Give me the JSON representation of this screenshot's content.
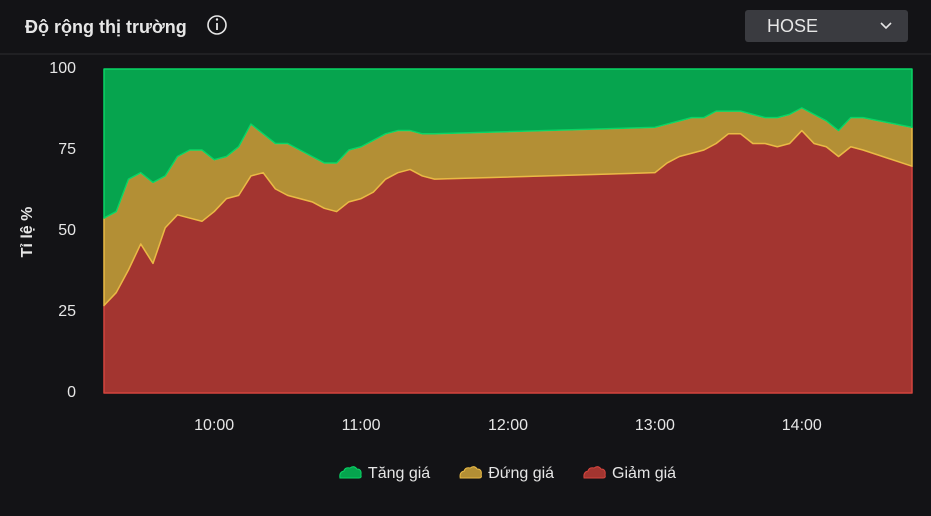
{
  "header": {
    "dropdown": "HOSE"
  },
  "chart_data": {
    "type": "stacked-area",
    "title": "Độ rộng thị trường",
    "ylabel": "Tỉ lệ %",
    "x": [
      "09:15",
      "09:20",
      "09:25",
      "09:30",
      "09:35",
      "09:40",
      "09:45",
      "09:50",
      "09:55",
      "10:00",
      "10:05",
      "10:10",
      "10:15",
      "10:20",
      "10:25",
      "10:30",
      "10:35",
      "10:40",
      "10:45",
      "10:50",
      "10:55",
      "11:00",
      "11:05",
      "11:10",
      "11:15",
      "11:20",
      "11:25",
      "11:30",
      "13:00",
      "13:05",
      "13:10",
      "13:15",
      "13:20",
      "13:25",
      "13:30",
      "13:35",
      "13:40",
      "13:45",
      "13:50",
      "13:55",
      "14:00",
      "14:05",
      "14:10",
      "14:15",
      "14:20",
      "14:25",
      "14:45"
    ],
    "xlim": [
      "09:15",
      "14:45"
    ],
    "xticks": [
      "10:00",
      "11:00",
      "12:00",
      "13:00",
      "14:00"
    ],
    "ylim": [
      0,
      100
    ],
    "yticks": [
      0,
      25,
      50,
      75,
      100
    ],
    "grid": false,
    "legend": "bottom",
    "series": [
      {
        "name": "Tăng giá",
        "color": "#06a44e",
        "values": [
          46,
          44,
          34,
          32,
          35,
          33,
          27,
          25,
          25,
          28,
          27,
          24,
          17,
          20,
          23,
          23,
          25,
          27,
          29,
          29,
          25,
          24,
          22,
          20,
          19,
          19,
          20,
          20,
          18,
          17,
          16,
          15,
          15,
          13,
          13,
          13,
          14,
          15,
          15,
          14,
          12,
          14,
          16,
          19,
          15,
          15,
          18
        ]
      },
      {
        "name": "Đứng giá",
        "color": "#b38f35",
        "values": [
          27,
          25,
          28,
          22,
          25,
          16,
          18,
          21,
          22,
          16,
          13,
          15,
          16,
          12,
          14,
          16,
          15,
          14,
          14,
          15,
          16,
          16,
          16,
          14,
          13,
          12,
          13,
          14,
          14,
          12,
          11,
          11,
          10,
          10,
          7,
          7,
          9,
          8,
          9,
          9,
          7,
          9,
          8,
          8,
          9,
          10,
          12
        ]
      },
      {
        "name": "Giảm giá",
        "color": "#a33530",
        "values": [
          27,
          31,
          38,
          46,
          40,
          51,
          55,
          54,
          53,
          56,
          60,
          61,
          67,
          68,
          63,
          61,
          60,
          59,
          57,
          56,
          59,
          60,
          62,
          66,
          68,
          69,
          67,
          66,
          68,
          71,
          73,
          74,
          75,
          77,
          80,
          80,
          77,
          77,
          76,
          77,
          81,
          77,
          76,
          73,
          76,
          75,
          70
        ]
      }
    ]
  }
}
